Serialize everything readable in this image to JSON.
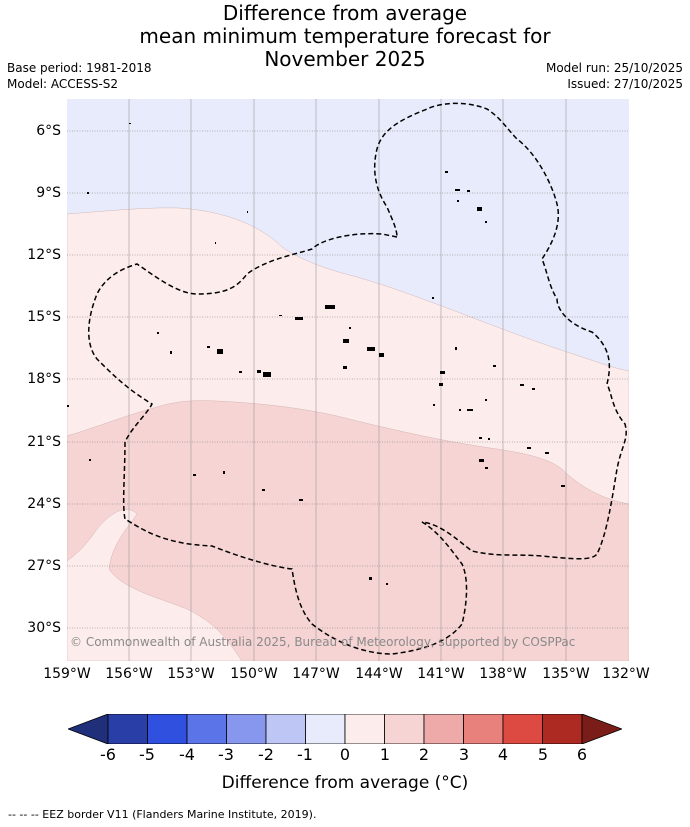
{
  "title": {
    "line1": "Difference from average",
    "line2": "mean minimum temperature forecast for",
    "line3": "November 2025"
  },
  "meta_left": {
    "base_period": "Base period: 1981-2018",
    "model": "Model: ACCESS-S2"
  },
  "meta_right": {
    "model_run": "Model run: 25/10/2025",
    "issued": "Issued: 27/10/2025"
  },
  "copyright": "© Commonwealth of Australia 2025, Bureau of Meteorology, supported by COSPPac",
  "lat_labels": [
    "6°S",
    "9°S",
    "12°S",
    "15°S",
    "18°S",
    "21°S",
    "24°S",
    "27°S",
    "30°S"
  ],
  "lon_labels": [
    "159°W",
    "156°W",
    "153°W",
    "150°W",
    "147°W",
    "144°W",
    "141°W",
    "138°W",
    "135°W",
    "132°W"
  ],
  "colorbar": {
    "ticks": [
      "-6",
      "-5",
      "-4",
      "-3",
      "-2",
      "-1",
      "0",
      "1",
      "2",
      "3",
      "4",
      "5",
      "6"
    ],
    "colors": [
      "#2a3ea8",
      "#3050e0",
      "#5b75e8",
      "#8797ee",
      "#bec6f5",
      "#e8ebfb",
      "#fceceb",
      "#f5d4d3",
      "#eeaaa8",
      "#e8817c",
      "#dc4a42",
      "#ad2a23"
    ],
    "low_extend_color": "#1f2f7a",
    "high_extend_color": "#7a1d18",
    "label": "Difference from average (°C)"
  },
  "region_colors": {
    "below_zero": "#e8ebfb",
    "zero_to_one": "#fceceb",
    "one_to_two": "#f5d4d3"
  },
  "footer": "-- -- -- EEZ border V11 (Flanders Marine Institute, 2019)."
}
